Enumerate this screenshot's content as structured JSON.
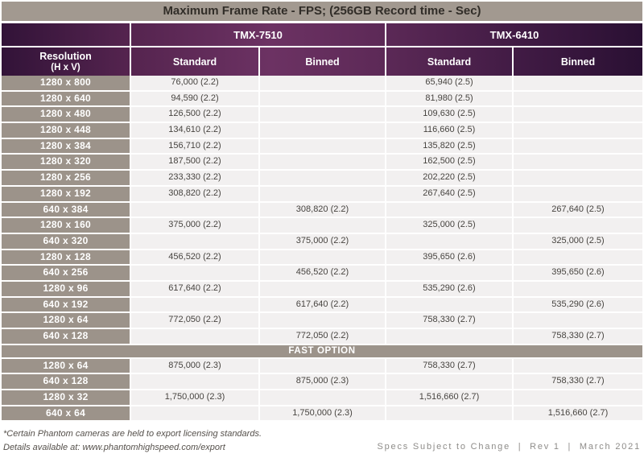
{
  "title": "Maximum Frame Rate - FPS; (256GB Record time - Sec)",
  "cameras": [
    "TMX-7510",
    "TMX-6410"
  ],
  "columns": {
    "resolution_line1": "Resolution",
    "resolution_line2": "(H x V)",
    "standard": "Standard",
    "binned": "Binned"
  },
  "main_rows": [
    {
      "resolution": "1280 x 800",
      "values": [
        "76,000 (2.2)",
        "",
        "65,940 (2.5)",
        ""
      ]
    },
    {
      "resolution": "1280 x 640",
      "values": [
        "94,590 (2.2)",
        "",
        "81,980 (2.5)",
        ""
      ]
    },
    {
      "resolution": "1280 x 480",
      "values": [
        "126,500 (2.2)",
        "",
        "109,630 (2.5)",
        ""
      ]
    },
    {
      "resolution": "1280 x 448",
      "values": [
        "134,610 (2.2)",
        "",
        "116,660 (2.5)",
        ""
      ]
    },
    {
      "resolution": "1280 x 384",
      "values": [
        "156,710 (2.2)",
        "",
        "135,820 (2.5)",
        ""
      ]
    },
    {
      "resolution": "1280 x 320",
      "values": [
        "187,500 (2.2)",
        "",
        "162,500 (2.5)",
        ""
      ]
    },
    {
      "resolution": "1280 x 256",
      "values": [
        "233,330 (2.2)",
        "",
        "202,220 (2.5)",
        ""
      ]
    },
    {
      "resolution": "1280 x 192",
      "values": [
        "308,820 (2.2)",
        "",
        "267,640 (2.5)",
        ""
      ]
    },
    {
      "resolution": "640 x 384",
      "values": [
        "",
        "308,820 (2.2)",
        "",
        "267,640 (2.5)"
      ]
    },
    {
      "resolution": "1280 x 160",
      "values": [
        "375,000 (2.2)",
        "",
        "325,000 (2.5)",
        ""
      ]
    },
    {
      "resolution": "640 x 320",
      "values": [
        "",
        "375,000 (2.2)",
        "",
        "325,000 (2.5)"
      ]
    },
    {
      "resolution": "1280 x 128",
      "values": [
        "456,520 (2.2)",
        "",
        "395,650 (2.6)",
        ""
      ]
    },
    {
      "resolution": "640 x 256",
      "values": [
        "",
        "456,520 (2.2)",
        "",
        "395,650 (2.6)"
      ]
    },
    {
      "resolution": "1280 x 96",
      "values": [
        "617,640 (2.2)",
        "",
        "535,290 (2.6)",
        ""
      ]
    },
    {
      "resolution": "640 x 192",
      "values": [
        "",
        "617,640 (2.2)",
        "",
        "535,290 (2.6)"
      ]
    },
    {
      "resolution": "1280 x 64",
      "values": [
        "772,050 (2.2)",
        "",
        "758,330 (2.7)",
        ""
      ]
    },
    {
      "resolution": "640 x 128",
      "values": [
        "",
        "772,050 (2.2)",
        "",
        "758,330 (2.7)"
      ]
    }
  ],
  "fast_option_label": "FAST OPTION",
  "fast_rows": [
    {
      "resolution": "1280 x 64",
      "values": [
        "875,000 (2.3)",
        "",
        "758,330 (2.7)",
        ""
      ]
    },
    {
      "resolution": "640 x 128",
      "values": [
        "",
        "875,000 (2.3)",
        "",
        "758,330 (2.7)"
      ]
    },
    {
      "resolution": "1280 x 32",
      "values": [
        "1,750,000 (2.3)",
        "",
        "1,516,660 (2.7)",
        ""
      ]
    },
    {
      "resolution": "640 x 64",
      "values": [
        "",
        "1,750,000 (2.3)",
        "",
        "1,516,660 (2.7)"
      ]
    }
  ],
  "footnotes": [
    "*Certain Phantom cameras are held to export licensing standards.",
    "Details available at: www.phantomhighspeed.com/export"
  ],
  "footer_right": "Specs Subject to Change  |  Rev 1  |  March 2021",
  "colors": {
    "taupe": "#9C938A",
    "title_bar": "#A29990",
    "purple_dark": "#2A1033",
    "purple_mid": "#6C3263",
    "row_background": "#F2F0F0",
    "title_text": "#312D28",
    "value_text": "#474440",
    "footnote_text": "#55504B",
    "footer_right_text": "#8E8C89"
  }
}
